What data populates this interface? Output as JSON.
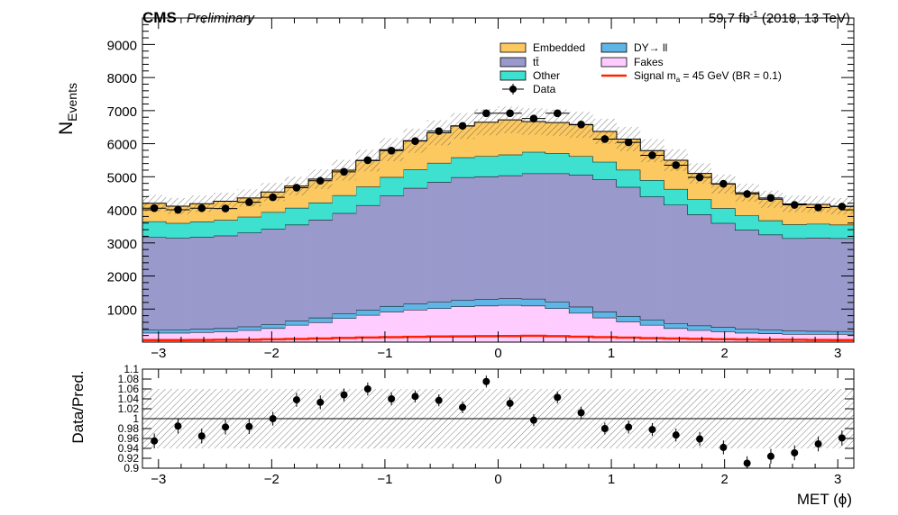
{
  "header": {
    "experiment": "CMS",
    "status": "Preliminary",
    "lumi": "59.7 fb",
    "lumi_sup": "-1",
    "lumi_rest": " (2018, 13 TeV)"
  },
  "axes": {
    "ylabel_main": "N",
    "ylabel_main_sub": "Events",
    "ylabel_ratio": "Data/Pred.",
    "xlabel": "MET (ϕ)"
  },
  "colors": {
    "embedded": "#fcc860",
    "ttbar": "#9999cc",
    "other": "#3ee0d0",
    "dy": "#5fb5e5",
    "fakes": "#ffccff",
    "signal": "#ff2200",
    "data": "#000000"
  },
  "legend": [
    {
      "key": "embedded",
      "label": "Embedded",
      "kind": "box"
    },
    {
      "key": "dy",
      "label": "DY→ ll",
      "kind": "box"
    },
    {
      "key": "ttbar",
      "label": "tt̄",
      "kind": "box"
    },
    {
      "key": "fakes",
      "label": "Fakes",
      "kind": "box"
    },
    {
      "key": "other",
      "label": "Other",
      "kind": "box"
    },
    {
      "key": "signal",
      "label": "Signal m",
      "label_sub": "a",
      "label_rest": " = 45 GeV (BR = 0.1)",
      "kind": "line"
    },
    {
      "key": "data",
      "label": "Data",
      "kind": "marker"
    }
  ],
  "chart_data": [
    {
      "type": "bar",
      "stacked": true,
      "x_bin_edges": [
        -3.14159,
        -2.93215,
        -2.72271,
        -2.51327,
        -2.30383,
        -2.0944,
        -1.88496,
        -1.67552,
        -1.46608,
        -1.25664,
        -1.0472,
        -0.83776,
        -0.62832,
        -0.41888,
        -0.20944,
        0.0,
        0.20944,
        0.41888,
        0.62832,
        0.83776,
        1.0472,
        1.25664,
        1.46608,
        1.67552,
        1.88496,
        2.0944,
        2.30383,
        2.51327,
        2.72271,
        2.93215,
        3.14159
      ],
      "xlim": [
        -3.14159,
        3.14159
      ],
      "ylim": [
        0,
        9800
      ],
      "x_ticks": [
        -3,
        -2,
        -1,
        0,
        1,
        2,
        3
      ],
      "x_tick_labels": [
        "−3",
        "−2",
        "−1",
        "0",
        "1",
        "2",
        "3"
      ],
      "y_ticks": [
        1000,
        2000,
        3000,
        4000,
        5000,
        6000,
        7000,
        8000,
        9000
      ],
      "y_tick_labels": [
        "1000",
        "2000",
        "3000",
        "4000",
        "5000",
        "6000",
        "7000",
        "8000",
        "9000"
      ],
      "series_order": [
        "fakes",
        "dy",
        "ttbar",
        "other",
        "embedded"
      ],
      "series": {
        "fakes": {
          "label": "Fakes",
          "values": [
            280,
            280,
            300,
            320,
            360,
            420,
            520,
            600,
            720,
            820,
            920,
            980,
            1020,
            1080,
            1100,
            1120,
            1100,
            1020,
            880,
            740,
            620,
            520,
            420,
            360,
            320,
            280,
            260,
            240,
            240,
            240
          ]
        },
        "dy": {
          "label": "DY→ ll",
          "values": [
            90,
            90,
            95,
            100,
            110,
            120,
            130,
            140,
            150,
            160,
            170,
            180,
            190,
            195,
            200,
            200,
            210,
            200,
            190,
            180,
            170,
            160,
            150,
            140,
            130,
            120,
            110,
            100,
            95,
            90
          ]
        },
        "ttbar": {
          "label": "tt̄",
          "values": [
            2800,
            2780,
            2790,
            2800,
            2840,
            2880,
            2900,
            2960,
            3030,
            3160,
            3340,
            3500,
            3630,
            3710,
            3710,
            3720,
            3790,
            3880,
            3990,
            4000,
            3900,
            3720,
            3580,
            3360,
            3150,
            2990,
            2880,
            2800,
            2820,
            2810
          ]
        },
        "other": {
          "label": "Other",
          "values": [
            480,
            450,
            460,
            470,
            480,
            510,
            510,
            520,
            540,
            560,
            560,
            560,
            580,
            600,
            610,
            630,
            650,
            610,
            560,
            530,
            520,
            500,
            480,
            460,
            450,
            440,
            430,
            420,
            420,
            410
          ]
        },
        "embedded": {
          "label": "Embedded",
          "values": [
            550,
            510,
            540,
            570,
            570,
            610,
            660,
            710,
            760,
            790,
            830,
            870,
            910,
            950,
            1030,
            1050,
            920,
            930,
            950,
            920,
            930,
            890,
            870,
            780,
            730,
            690,
            640,
            620,
            590,
            560
          ]
        }
      },
      "signal": {
        "label": "Signal m_a = 45 GeV (BR = 0.1)",
        "values": [
          60,
          60,
          65,
          70,
          75,
          85,
          95,
          110,
          125,
          140,
          150,
          160,
          170,
          175,
          180,
          185,
          190,
          180,
          165,
          150,
          135,
          120,
          110,
          100,
          90,
          80,
          75,
          70,
          65,
          60
        ]
      },
      "data": {
        "label": "Data",
        "values": [
          4050,
          4000,
          4050,
          4040,
          4230,
          4380,
          4670,
          4880,
          5150,
          5500,
          5790,
          6080,
          6380,
          6540,
          6920,
          6920,
          6760,
          6920,
          6580,
          6140,
          6040,
          5650,
          5350,
          4980,
          4790,
          4480,
          4360,
          4150,
          4070,
          4100
        ],
        "errors": [
          64,
          63,
          64,
          64,
          65,
          66,
          68,
          70,
          72,
          74,
          76,
          78,
          80,
          81,
          83,
          83,
          82,
          83,
          81,
          78,
          78,
          75,
          73,
          71,
          69,
          67,
          66,
          64,
          64,
          64
        ]
      },
      "mc_uncertainty_fraction": 0.06
    },
    {
      "type": "scatter",
      "panel": "ratio",
      "xlim": [
        -3.14159,
        3.14159
      ],
      "ylim": [
        0.9,
        1.1
      ],
      "reference_line": 1.0,
      "y_ticks": [
        0.9,
        0.92,
        0.94,
        0.96,
        0.98,
        1,
        1.02,
        1.04,
        1.06,
        1.08,
        1.1
      ],
      "y_tick_labels": [
        "0.9",
        "0.92",
        "0.94",
        "0.96",
        "0.98",
        "1",
        "1.02",
        "1.04",
        "1.06",
        "1.08",
        "1.1"
      ],
      "x_ticks": [
        -3,
        -2,
        -1,
        0,
        1,
        2,
        3
      ],
      "x_tick_labels": [
        "−3",
        "−2",
        "−1",
        "0",
        "1",
        "2",
        "3"
      ],
      "ratio": [
        0.955,
        0.985,
        0.965,
        0.983,
        0.984,
        1.0,
        1.038,
        1.033,
        1.048,
        1.06,
        1.04,
        1.045,
        1.037,
        1.023,
        1.075,
        1.031,
        0.997,
        1.043,
        1.012,
        0.98,
        0.983,
        0.978,
        0.967,
        0.959,
        0.942,
        0.91,
        0.924,
        0.931,
        0.949,
        0.961
      ],
      "ratio_errors": [
        0.015,
        0.015,
        0.015,
        0.015,
        0.015,
        0.014,
        0.014,
        0.014,
        0.013,
        0.013,
        0.013,
        0.012,
        0.012,
        0.012,
        0.012,
        0.012,
        0.012,
        0.012,
        0.012,
        0.012,
        0.013,
        0.013,
        0.013,
        0.014,
        0.014,
        0.014,
        0.015,
        0.015,
        0.015,
        0.015
      ],
      "band_fraction": 0.06
    }
  ]
}
